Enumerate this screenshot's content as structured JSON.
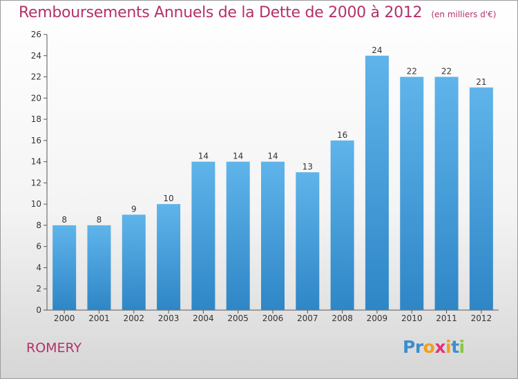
{
  "header": {
    "title": "Remboursements Annuels de la Dette de 2000 à 2012",
    "subtitle": "(en milliers d'€)"
  },
  "location": {
    "name": "ROMERY"
  },
  "branding": {
    "letters": [
      {
        "ch": "P",
        "color": "#3a8fd1"
      },
      {
        "ch": "r",
        "color": "#3a8fd1"
      },
      {
        "ch": "o",
        "color": "#f0a019"
      },
      {
        "ch": "x",
        "color": "#e0337e"
      },
      {
        "ch": "i",
        "color": "#f0a019"
      },
      {
        "ch": "t",
        "color": "#3a8fd1"
      },
      {
        "ch": "i",
        "color": "#8cc63f"
      }
    ]
  },
  "chart_data": {
    "type": "bar",
    "categories": [
      "2000",
      "2001",
      "2002",
      "2003",
      "2004",
      "2005",
      "2006",
      "2007",
      "2008",
      "2009",
      "2010",
      "2011",
      "2012"
    ],
    "values": [
      8,
      8,
      9,
      10,
      14,
      14,
      14,
      13,
      16,
      24,
      22,
      22,
      21
    ],
    "ylim": [
      0,
      26
    ],
    "yticks": [
      0,
      2,
      4,
      6,
      8,
      10,
      12,
      14,
      16,
      18,
      20,
      22,
      24,
      26
    ],
    "grid": false,
    "data_labels": true,
    "colors": {
      "bar_light": "#5fb4ea",
      "bar_dark": "#2f86c6",
      "axis": "#555555",
      "label": "#333333"
    }
  }
}
